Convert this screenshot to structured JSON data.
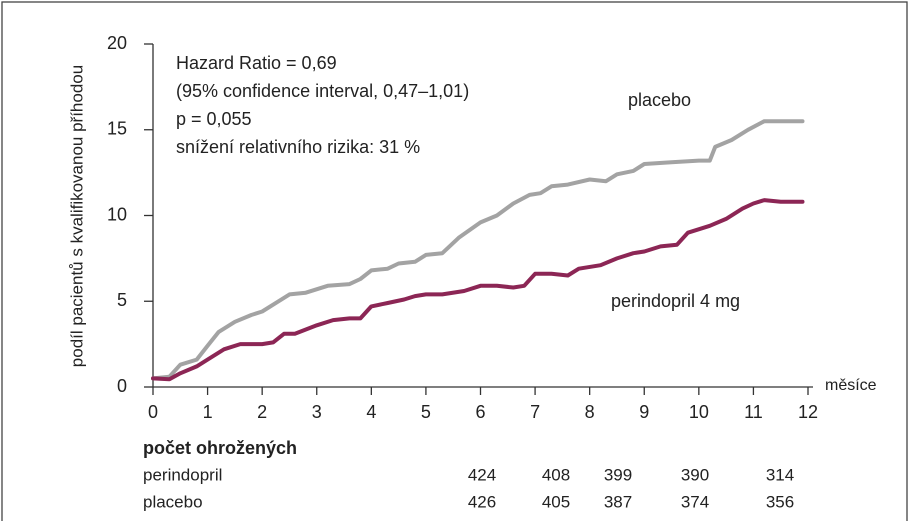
{
  "chart_data": {
    "type": "line",
    "ylabel": "podíl pacientů s kvalifikovanou příhodou",
    "xlabel": "měsíce",
    "xlim": [
      0,
      12
    ],
    "xticks": [
      0,
      1,
      2,
      3,
      4,
      5,
      6,
      7,
      8,
      9,
      10,
      11,
      12
    ],
    "ylim": [
      0,
      20
    ],
    "yticks": [
      0,
      5,
      10,
      15,
      20
    ],
    "annotations": [
      "Hazard Ratio = 0,69",
      "(95% confidence interval, 0,47–1,01)",
      "p = 0,055",
      "snížení relativního rizika: 31 %"
    ],
    "series": [
      {
        "name": "placebo",
        "color": "#a3a3a3",
        "x": [
          0,
          0.3,
          0.5,
          0.8,
          1.0,
          1.2,
          1.5,
          1.8,
          2.0,
          2.3,
          2.5,
          2.8,
          3.2,
          3.6,
          3.8,
          4.0,
          4.3,
          4.5,
          4.8,
          5.0,
          5.3,
          5.6,
          6.0,
          6.3,
          6.6,
          6.9,
          7.1,
          7.3,
          7.6,
          8.0,
          8.3,
          8.5,
          8.8,
          9.0,
          9.5,
          10.0,
          10.2,
          10.3,
          10.6,
          10.9,
          11.2,
          11.5,
          11.9
        ],
        "values": [
          0.5,
          0.6,
          1.3,
          1.6,
          2.4,
          3.2,
          3.8,
          4.2,
          4.4,
          5.0,
          5.4,
          5.5,
          5.9,
          6.0,
          6.3,
          6.8,
          6.9,
          7.2,
          7.3,
          7.7,
          7.8,
          8.7,
          9.6,
          10.0,
          10.7,
          11.2,
          11.3,
          11.7,
          11.8,
          12.1,
          12.0,
          12.4,
          12.6,
          13.0,
          13.1,
          13.2,
          13.2,
          14.0,
          14.4,
          15.0,
          15.5,
          15.5,
          15.5
        ]
      },
      {
        "name": "perindopril 4 mg",
        "color": "#8c2655",
        "x": [
          0,
          0.3,
          0.5,
          0.8,
          1.0,
          1.3,
          1.6,
          2.0,
          2.2,
          2.4,
          2.6,
          3.0,
          3.3,
          3.6,
          3.8,
          4.0,
          4.3,
          4.6,
          4.8,
          5.0,
          5.3,
          5.7,
          6.0,
          6.3,
          6.6,
          6.8,
          7.0,
          7.3,
          7.6,
          7.8,
          8.2,
          8.5,
          8.8,
          9.0,
          9.3,
          9.6,
          9.8,
          10.2,
          10.5,
          10.8,
          11.0,
          11.2,
          11.5,
          11.9
        ],
        "values": [
          0.5,
          0.45,
          0.8,
          1.2,
          1.6,
          2.2,
          2.5,
          2.5,
          2.6,
          3.1,
          3.1,
          3.6,
          3.9,
          4.0,
          4.0,
          4.7,
          4.9,
          5.1,
          5.3,
          5.4,
          5.4,
          5.6,
          5.9,
          5.9,
          5.8,
          5.9,
          6.6,
          6.6,
          6.5,
          6.9,
          7.1,
          7.5,
          7.8,
          7.9,
          8.2,
          8.3,
          9.0,
          9.4,
          9.8,
          10.4,
          10.7,
          10.9,
          10.8,
          10.8
        ]
      }
    ]
  },
  "at_risk": {
    "title": "počet ohrožených",
    "rows": [
      {
        "name": "perindopril",
        "values": [
          424,
          408,
          399,
          390,
          314
        ]
      },
      {
        "name": "placebo",
        "values": [
          426,
          405,
          387,
          374,
          356
        ]
      }
    ]
  }
}
